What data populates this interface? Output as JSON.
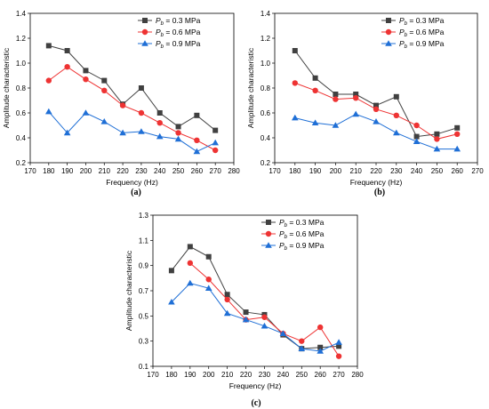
{
  "chart_data": [
    {
      "type": "line",
      "panel_label": "(a)",
      "xlabel": "Frequency (Hz)",
      "ylabel": "Amplitude characteristic",
      "xlim": [
        170,
        280
      ],
      "ylim": [
        0.2,
        1.4
      ],
      "xticks": [
        170,
        180,
        190,
        200,
        210,
        220,
        230,
        240,
        250,
        260,
        270,
        280
      ],
      "yticks": [
        0.2,
        0.4,
        0.6,
        0.8,
        1.0,
        1.2,
        1.4
      ],
      "ytick_labels": [
        "0.2",
        "0.4",
        "0.6",
        "0.8",
        "1.0",
        "1.2",
        "1.4"
      ],
      "legend_position": "top-right",
      "series": [
        {
          "name": "P_b = 0.3 MPa",
          "name_sub": "b",
          "name_rest": " = 0.3 MPa",
          "marker": "square",
          "color": "#404040",
          "x": [
            180,
            190,
            200,
            210,
            220,
            230,
            240,
            250,
            260,
            270
          ],
          "y": [
            1.14,
            1.1,
            0.94,
            0.86,
            0.67,
            0.8,
            0.6,
            0.49,
            0.58,
            0.46
          ]
        },
        {
          "name": "P_b = 0.6 MPa",
          "name_sub": "b",
          "name_rest": " = 0.6 MPa",
          "marker": "circle",
          "color": "#ee3333",
          "x": [
            180,
            190,
            200,
            210,
            220,
            230,
            240,
            250,
            260,
            270
          ],
          "y": [
            0.86,
            0.97,
            0.87,
            0.78,
            0.66,
            0.6,
            0.52,
            0.44,
            0.38,
            0.3
          ]
        },
        {
          "name": "P_b = 0.9 MPa",
          "name_sub": "b",
          "name_rest": " = 0.9 MPa",
          "marker": "triangle",
          "color": "#1f6fd6",
          "x": [
            180,
            190,
            200,
            210,
            220,
            230,
            240,
            250,
            260,
            270
          ],
          "y": [
            0.61,
            0.44,
            0.6,
            0.53,
            0.44,
            0.45,
            0.41,
            0.39,
            0.29,
            0.36
          ]
        }
      ]
    },
    {
      "type": "line",
      "panel_label": "(b)",
      "xlabel": "Frequency (Hz)",
      "ylabel": "Amplitude characteristic",
      "xlim": [
        170,
        270
      ],
      "ylim": [
        0.2,
        1.4
      ],
      "xticks": [
        170,
        180,
        190,
        200,
        210,
        220,
        230,
        240,
        250,
        260,
        270
      ],
      "yticks": [
        0.2,
        0.4,
        0.6,
        0.8,
        1.0,
        1.2,
        1.4
      ],
      "ytick_labels": [
        "0.2",
        "0.4",
        "0.6",
        "0.8",
        "1.0",
        "1.2",
        "1.4"
      ],
      "legend_position": "top-right",
      "series": [
        {
          "name": "P_b = 0.3 MPa",
          "name_sub": "b",
          "name_rest": " = 0.3 MPa",
          "marker": "square",
          "color": "#404040",
          "x": [
            180,
            190,
            200,
            210,
            220,
            230,
            240,
            250,
            260
          ],
          "y": [
            1.1,
            0.88,
            0.75,
            0.75,
            0.66,
            0.73,
            0.41,
            0.43,
            0.48
          ]
        },
        {
          "name": "P_b = 0.6 MPa",
          "name_sub": "b",
          "name_rest": " = 0.6 MPa",
          "marker": "circle",
          "color": "#ee3333",
          "x": [
            180,
            190,
            200,
            210,
            220,
            230,
            240,
            250,
            260
          ],
          "y": [
            0.84,
            0.78,
            0.71,
            0.72,
            0.63,
            0.58,
            0.5,
            0.39,
            0.43
          ]
        },
        {
          "name": "P_b = 0.9 MPa",
          "name_sub": "b",
          "name_rest": " = 0.9 MPa",
          "marker": "triangle",
          "color": "#1f6fd6",
          "x": [
            180,
            190,
            200,
            210,
            220,
            230,
            240,
            250,
            260
          ],
          "y": [
            0.56,
            0.52,
            0.5,
            0.59,
            0.53,
            0.44,
            0.37,
            0.31,
            0.31
          ]
        }
      ]
    },
    {
      "type": "line",
      "panel_label": "(c)",
      "xlabel": "Frequency (Hz)",
      "ylabel": "Amplitude characteristic",
      "xlim": [
        170,
        280
      ],
      "ylim": [
        0.1,
        1.3
      ],
      "xticks": [
        170,
        180,
        190,
        200,
        210,
        220,
        230,
        240,
        250,
        260,
        270,
        280
      ],
      "yticks": [
        0.1,
        0.3,
        0.5,
        0.7,
        0.9,
        1.1,
        1.3
      ],
      "ytick_labels": [
        "0.1",
        "0.3",
        "0.5",
        "0.7",
        "0.9",
        "1.1",
        "1.3"
      ],
      "legend_position": "top-right",
      "series": [
        {
          "name": "P_b = 0.3 MPa",
          "name_sub": "b",
          "name_rest": " = 0.3 MPa",
          "marker": "square",
          "color": "#404040",
          "x": [
            180,
            190,
            200,
            210,
            220,
            230,
            240,
            250,
            260,
            270
          ],
          "y": [
            0.86,
            1.05,
            0.97,
            0.67,
            0.53,
            0.51,
            0.35,
            0.24,
            0.25,
            0.26
          ]
        },
        {
          "name": "P_b = 0.6 MPa",
          "name_sub": "b",
          "name_rest": " = 0.6 MPa",
          "marker": "circle",
          "color": "#ee3333",
          "x": [
            190,
            200,
            210,
            220,
            230,
            240,
            250,
            260,
            270
          ],
          "y": [
            0.92,
            0.79,
            0.63,
            0.47,
            0.49,
            0.36,
            0.3,
            0.41,
            0.18
          ]
        },
        {
          "name": "P_b = 0.9 MPa",
          "name_sub": "b",
          "name_rest": " = 0.9 MPa",
          "marker": "triangle",
          "color": "#1f6fd6",
          "x": [
            180,
            190,
            200,
            210,
            220,
            230,
            240,
            250,
            260,
            270
          ],
          "y": [
            0.61,
            0.76,
            0.72,
            0.52,
            0.47,
            0.42,
            0.36,
            0.24,
            0.22,
            0.29
          ]
        }
      ]
    }
  ]
}
